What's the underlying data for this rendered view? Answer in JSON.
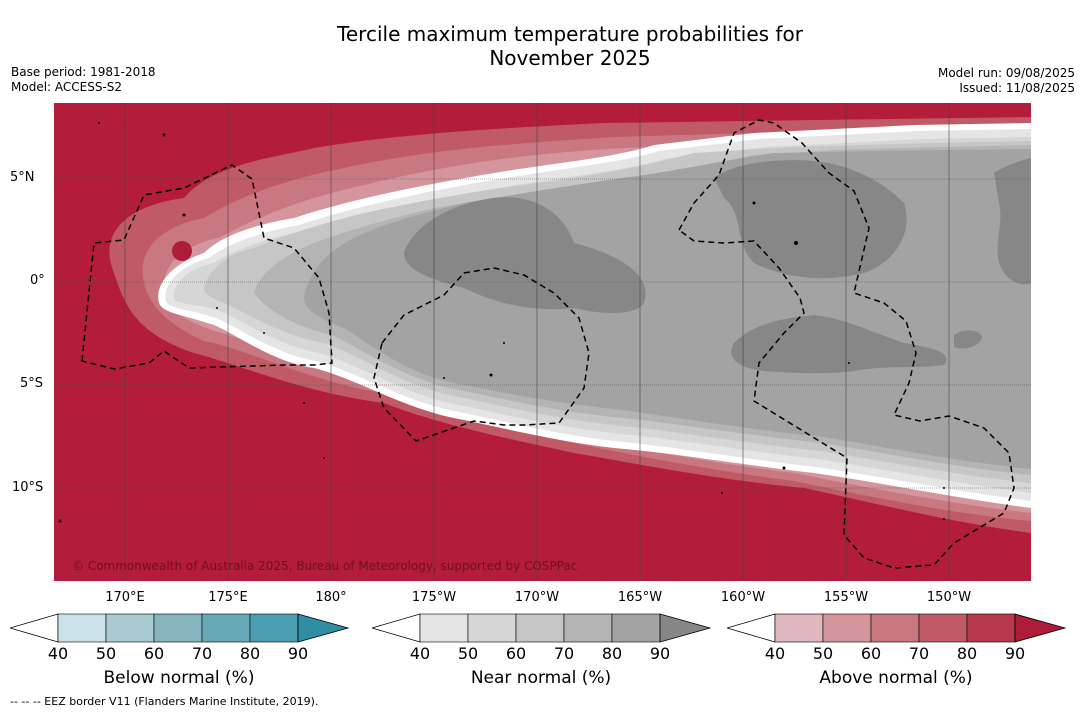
{
  "title": {
    "line1": "Tercile maximum temperature probabilities for",
    "line2": "November 2025"
  },
  "info_left": {
    "base_period": "Base period: 1981-2018",
    "model": "Model: ACCESS-S2"
  },
  "info_right": {
    "model_run": "Model run: 09/08/2025",
    "issued": "Issued: 11/08/2025"
  },
  "lon_labels": [
    "170°E",
    "175°E",
    "180°",
    "175°W",
    "170°W",
    "165°W",
    "160°W",
    "155°W",
    "150°W"
  ],
  "lat_labels": [
    "5°N",
    "0°",
    "5°S",
    "10°S"
  ],
  "credit": "© Commonwealth of Australia 2025, Bureau of Meteorology, supported by COSPPac",
  "colorbars": [
    {
      "label": "Below normal (%)",
      "ticks": [
        "40",
        "50",
        "60",
        "70",
        "80",
        "90"
      ],
      "colors": [
        "#c9e2e8",
        "#a8c9ce",
        "#87b5bf",
        "#68a9b7",
        "#4b9eb1",
        "#2f8ea3"
      ]
    },
    {
      "label": "Near normal (%)",
      "ticks": [
        "40",
        "50",
        "60",
        "70",
        "80",
        "90"
      ],
      "colors": [
        "#e5e5e5",
        "#d6d6d6",
        "#c6c6c6",
        "#b4b4b4",
        "#a2a2a2",
        "#868686"
      ]
    },
    {
      "label": "Above normal (%)",
      "ticks": [
        "40",
        "50",
        "60",
        "70",
        "80",
        "90"
      ],
      "colors": [
        "#dfb8bd",
        "#d5959c",
        "#c97882",
        "#c05a67",
        "#b8394c",
        "#ad1c38"
      ]
    }
  ],
  "footnote": "--  --  -- EEZ border V11 (Flanders Marine Institute, 2019).",
  "colors": {
    "above_90": "#b31c3a",
    "near_70": "#a3a3a3",
    "near_90": "#878787"
  }
}
